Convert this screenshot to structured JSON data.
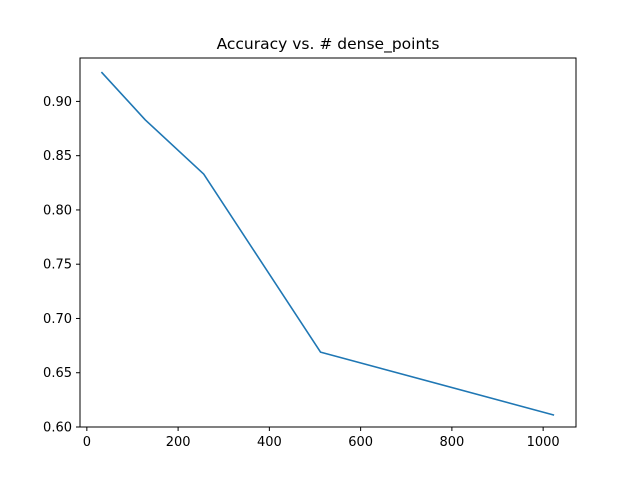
{
  "chart_data": {
    "type": "line",
    "title": "Accuracy vs. # dense_points",
    "xlabel": "",
    "ylabel": "",
    "xlim": [
      -15,
      1072
    ],
    "ylim": [
      0.6,
      0.94
    ],
    "xticks": [
      0,
      200,
      400,
      600,
      800,
      1000
    ],
    "yticks": [
      0.6,
      0.65,
      0.7,
      0.75,
      0.8,
      0.85,
      0.9
    ],
    "xtick_labels": [
      "0",
      "200",
      "400",
      "600",
      "800",
      "1000"
    ],
    "ytick_labels": [
      "0.60",
      "0.65",
      "0.70",
      "0.75",
      "0.80",
      "0.85",
      "0.90"
    ],
    "grid": false,
    "series": [
      {
        "color": "#1f77b4",
        "x": [
          32,
          128,
          256,
          512,
          1024
        ],
        "y": [
          0.927,
          0.883,
          0.833,
          0.669,
          0.611
        ]
      }
    ]
  }
}
